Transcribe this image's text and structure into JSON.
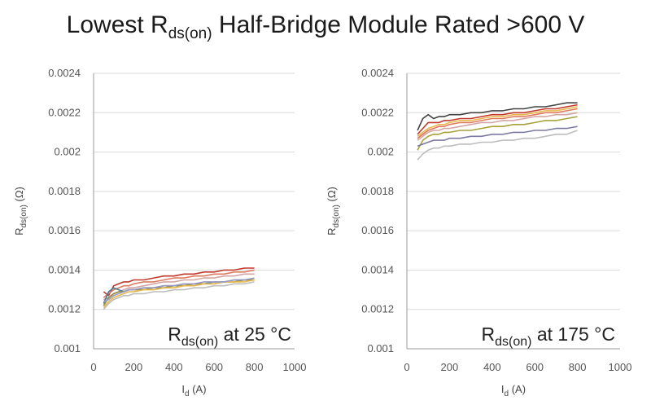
{
  "title": {
    "main": "Lowest R",
    "sub": "ds(on)",
    "rest": " Half-Bridge Module Rated >600 V"
  },
  "chart_data": [
    {
      "type": "line",
      "annotation": {
        "main": "R",
        "sub": "ds(on)",
        "rest": " at 25 °C"
      },
      "xlabel": {
        "main": "I",
        "sub": "d",
        "rest": " (A)"
      },
      "ylabel": {
        "main": "R",
        "sub": "ds(on)",
        "rest": " (Ω)"
      },
      "xlim": [
        0,
        1000
      ],
      "ylim": [
        0.001,
        0.0024
      ],
      "xticks": [
        "0",
        "200",
        "400",
        "600",
        "800",
        "1000"
      ],
      "yticks": [
        "0.001",
        "0.0012",
        "0.0014",
        "0.0016",
        "0.0018",
        "0.002",
        "0.0022",
        "0.0024"
      ],
      "grid": "horizontal",
      "x": [
        50,
        75,
        100,
        125,
        150,
        175,
        200,
        250,
        300,
        350,
        400,
        450,
        500,
        550,
        600,
        650,
        700,
        750,
        800
      ],
      "series": [
        {
          "color": "#c0392b",
          "values": [
            0.00129,
            0.00127,
            0.00132,
            0.00133,
            0.00134,
            0.00134,
            0.00135,
            0.00135,
            0.00136,
            0.00137,
            0.00137,
            0.00138,
            0.00138,
            0.00139,
            0.00139,
            0.0014,
            0.0014,
            0.00141,
            0.00141
          ]
        },
        {
          "color": "#e07a5f",
          "values": [
            0.00126,
            0.00128,
            0.0013,
            0.00131,
            0.00132,
            0.00132,
            0.00133,
            0.00134,
            0.00134,
            0.00135,
            0.00136,
            0.00136,
            0.00137,
            0.00137,
            0.00138,
            0.00138,
            0.00139,
            0.00139,
            0.0014
          ]
        },
        {
          "color": "#d4a5a5",
          "values": [
            0.00125,
            0.00126,
            0.00128,
            0.00129,
            0.0013,
            0.00131,
            0.00131,
            0.00132,
            0.00133,
            0.00134,
            0.00134,
            0.00135,
            0.00135,
            0.00136,
            0.00136,
            0.00137,
            0.00137,
            0.00138,
            0.00138
          ]
        },
        {
          "color": "#4a7c9c",
          "values": [
            0.00123,
            0.00129,
            0.00131,
            0.0013,
            0.00129,
            0.0013,
            0.0013,
            0.00131,
            0.00131,
            0.00132,
            0.00132,
            0.00133,
            0.00133,
            0.00133,
            0.00134,
            0.00134,
            0.00135,
            0.00135,
            0.00135
          ]
        },
        {
          "color": "#8b8b3a",
          "values": [
            0.00122,
            0.00126,
            0.00128,
            0.00129,
            0.00129,
            0.0013,
            0.0013,
            0.0013,
            0.00131,
            0.00131,
            0.00132,
            0.00132,
            0.00133,
            0.00133,
            0.00133,
            0.00134,
            0.00134,
            0.00135,
            0.00135
          ]
        },
        {
          "color": "#e8b84a",
          "values": [
            0.00121,
            0.00124,
            0.00126,
            0.00127,
            0.00128,
            0.00129,
            0.00129,
            0.0013,
            0.0013,
            0.00131,
            0.00131,
            0.00132,
            0.00132,
            0.00133,
            0.00133,
            0.00134,
            0.00134,
            0.00134,
            0.00135
          ]
        },
        {
          "color": "#9a9ac4",
          "values": [
            0.00124,
            0.00125,
            0.00127,
            0.00128,
            0.00129,
            0.0013,
            0.0013,
            0.00131,
            0.00131,
            0.00132,
            0.00132,
            0.00133,
            0.00133,
            0.00134,
            0.00134,
            0.00134,
            0.00135,
            0.00135,
            0.00136
          ]
        },
        {
          "color": "#bdbdbd",
          "values": [
            0.0012,
            0.00123,
            0.00125,
            0.00126,
            0.00127,
            0.00127,
            0.00128,
            0.00128,
            0.00129,
            0.00129,
            0.0013,
            0.0013,
            0.00131,
            0.00131,
            0.00132,
            0.00132,
            0.00133,
            0.00133,
            0.00134
          ]
        }
      ]
    },
    {
      "type": "line",
      "annotation": {
        "main": "R",
        "sub": "ds(on)",
        "rest": " at 175 °C"
      },
      "xlabel": {
        "main": "I",
        "sub": "d",
        "rest": " (A)"
      },
      "ylabel": {
        "main": "R",
        "sub": "ds(on)",
        "rest": " (Ω)"
      },
      "xlim": [
        0,
        1000
      ],
      "ylim": [
        0.001,
        0.0024
      ],
      "xticks": [
        "0",
        "200",
        "400",
        "600",
        "800",
        "1000"
      ],
      "yticks": [
        "0.001",
        "0.0012",
        "0.0014",
        "0.0016",
        "0.0018",
        "0.002",
        "0.0022",
        "0.0024"
      ],
      "grid": "horizontal",
      "x": [
        50,
        75,
        100,
        125,
        150,
        175,
        200,
        250,
        300,
        350,
        400,
        450,
        500,
        550,
        600,
        650,
        700,
        750,
        800
      ],
      "series": [
        {
          "color": "#444444",
          "values": [
            0.00211,
            0.00217,
            0.00219,
            0.00217,
            0.00218,
            0.00218,
            0.00219,
            0.00219,
            0.0022,
            0.0022,
            0.00221,
            0.00221,
            0.00222,
            0.00222,
            0.00223,
            0.00223,
            0.00224,
            0.00225,
            0.00225
          ]
        },
        {
          "color": "#c0392b",
          "values": [
            0.00209,
            0.00212,
            0.00215,
            0.00215,
            0.00215,
            0.00216,
            0.00216,
            0.00217,
            0.00217,
            0.00218,
            0.00219,
            0.00219,
            0.0022,
            0.0022,
            0.00221,
            0.00222,
            0.00222,
            0.00223,
            0.00224
          ]
        },
        {
          "color": "#e8b84a",
          "values": [
            0.00208,
            0.0021,
            0.00212,
            0.00213,
            0.00214,
            0.00214,
            0.00215,
            0.00216,
            0.00216,
            0.00217,
            0.00218,
            0.00218,
            0.00219,
            0.00219,
            0.0022,
            0.00221,
            0.00221,
            0.00222,
            0.00223
          ]
        },
        {
          "color": "#e07a5f",
          "values": [
            0.00207,
            0.00209,
            0.00211,
            0.00212,
            0.00213,
            0.00213,
            0.00214,
            0.00215,
            0.00215,
            0.00216,
            0.00217,
            0.00217,
            0.00218,
            0.00218,
            0.00219,
            0.0022,
            0.0022,
            0.00221,
            0.00222
          ]
        },
        {
          "color": "#d4a5a5",
          "values": [
            0.00206,
            0.00208,
            0.0021,
            0.00211,
            0.00211,
            0.00212,
            0.00212,
            0.00213,
            0.00214,
            0.00215,
            0.00215,
            0.00216,
            0.00216,
            0.00217,
            0.00218,
            0.00218,
            0.00219,
            0.00219,
            0.0022
          ]
        },
        {
          "color": "#a8a23a",
          "values": [
            0.00201,
            0.00206,
            0.00208,
            0.00209,
            0.00209,
            0.0021,
            0.0021,
            0.00211,
            0.00211,
            0.00212,
            0.00213,
            0.00213,
            0.00214,
            0.00214,
            0.00215,
            0.00216,
            0.00216,
            0.00217,
            0.00218
          ]
        },
        {
          "color": "#7d7aa3",
          "values": [
            0.00203,
            0.00204,
            0.00205,
            0.00206,
            0.00206,
            0.00206,
            0.00207,
            0.00207,
            0.00208,
            0.00208,
            0.00209,
            0.00209,
            0.0021,
            0.0021,
            0.00211,
            0.00211,
            0.00212,
            0.00212,
            0.00213
          ]
        },
        {
          "color": "#bdbdbd",
          "values": [
            0.00196,
            0.00199,
            0.00201,
            0.00202,
            0.00202,
            0.00203,
            0.00203,
            0.00204,
            0.00204,
            0.00205,
            0.00205,
            0.00206,
            0.00206,
            0.00207,
            0.00207,
            0.00208,
            0.00209,
            0.00209,
            0.00211
          ]
        }
      ]
    }
  ]
}
